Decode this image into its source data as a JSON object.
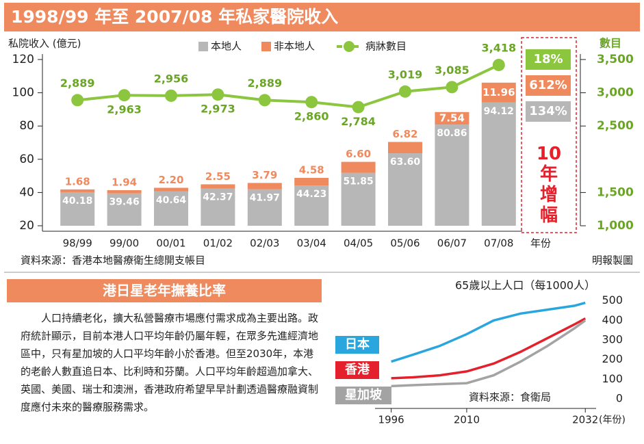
{
  "header": {
    "title": "1998/99 年至 2007/08 年私家醫院收入"
  },
  "chart_data": [
    {
      "type": "combo",
      "stacked": true,
      "y_label": "私院收入 (億元)",
      "y2_label": "數目",
      "x_label": "年份",
      "categories": [
        "98/99",
        "99/00",
        "00/01",
        "01/02",
        "02/03",
        "03/04",
        "04/05",
        "05/06",
        "06/07",
        "07/08"
      ],
      "series": [
        {
          "name": "本地人",
          "color": "#b7b7b7",
          "kind": "bar",
          "values": [
            40.18,
            39.46,
            40.64,
            42.37,
            41.97,
            44.23,
            51.85,
            63.6,
            80.86,
            94.12
          ],
          "value_labels": [
            "40.18",
            "39.46",
            "40.64",
            "42.37",
            "41.97",
            "44.23",
            "51.85",
            "63.60",
            "80.86",
            "94.12"
          ]
        },
        {
          "name": "非本地人",
          "color": "#ef8a5f",
          "kind": "bar",
          "values": [
            1.68,
            1.94,
            2.2,
            2.55,
            3.79,
            4.58,
            6.6,
            6.82,
            7.54,
            11.96
          ],
          "value_labels": [
            "1.68",
            "1.94",
            "2.20",
            "2.55",
            "3.79",
            "4.58",
            "6.60",
            "6.82",
            "7.54",
            "11.96"
          ]
        },
        {
          "name": "病牀數目",
          "color": "#8cc63e",
          "kind": "line",
          "axis": "y2",
          "values": [
            2889,
            2963,
            2956,
            2973,
            2889,
            2860,
            2784,
            3019,
            3085,
            3418
          ],
          "value_labels": [
            "2,889",
            "2,963",
            "2,956",
            "2,973",
            "2,889",
            "2,860",
            "2,784",
            "3,019",
            "3,085",
            "3,418"
          ]
        }
      ],
      "ylim": [
        20,
        120
      ],
      "yticks": [
        20,
        40,
        60,
        80,
        100,
        120
      ],
      "y2lim": [
        1000,
        3500
      ],
      "y2ticks": [
        {
          "value": 1000,
          "label": "1,000"
        },
        {
          "value": 1500,
          "label": "1,500"
        },
        {
          "value": 2500,
          "label": "2,500"
        },
        {
          "value": 3000,
          "label": "3,000"
        },
        {
          "value": 3500,
          "label": "3,500"
        }
      ],
      "growth": {
        "title": "10年增幅",
        "items": [
          {
            "label": "18%",
            "color": "#8cc63e"
          },
          {
            "label": "612%",
            "color": "#ef8a5f"
          },
          {
            "label": "134%",
            "color": "#b7b7b7"
          }
        ]
      },
      "source": "資料來源：香港本地醫療衛生總開支帳目",
      "credit": "明報製圖"
    },
    {
      "type": "line",
      "title": "65歲以上人口（每1000人）",
      "x_label": "(年份)",
      "x": [
        1996,
        2000,
        2005,
        2010,
        2015,
        2020,
        2025,
        2030,
        2032
      ],
      "series": [
        {
          "name": "日本",
          "color": "#2aa6df",
          "values": [
            190,
            225,
            270,
            330,
            400,
            435,
            455,
            475,
            490
          ]
        },
        {
          "name": "香港",
          "color": "#e3202b",
          "values": [
            105,
            110,
            120,
            140,
            180,
            240,
            310,
            380,
            410
          ]
        },
        {
          "name": "星加坡",
          "color": "#a3a3a3",
          "values": [
            65,
            70,
            75,
            80,
            120,
            190,
            270,
            360,
            400
          ]
        }
      ],
      "xlim": [
        1993,
        2034
      ],
      "xticks": [
        1996,
        2010,
        2032
      ],
      "ylim": [
        0,
        520
      ],
      "yticks": [
        0,
        100,
        200,
        300,
        400,
        500
      ],
      "source": "資料來源：食衛局"
    }
  ],
  "article": {
    "title": "港日星老年撫養比率",
    "body": "人口持續老化，擴大私營醫療市場應付需求成為主要出路。政府統計顯示，目前本港人口平均年齡仍屬年輕，在眾多先進經濟地區中，只有星加坡的人口平均年齡小於香港。但至2030年，本港的老齡人數直追日本、比利時和芬蘭。人口平均年齡超過加拿大、英國、美國、瑞士和澳洲，香港政府希望早早計劃透過醫療融資制度應付未來的醫療服務需求。"
  }
}
